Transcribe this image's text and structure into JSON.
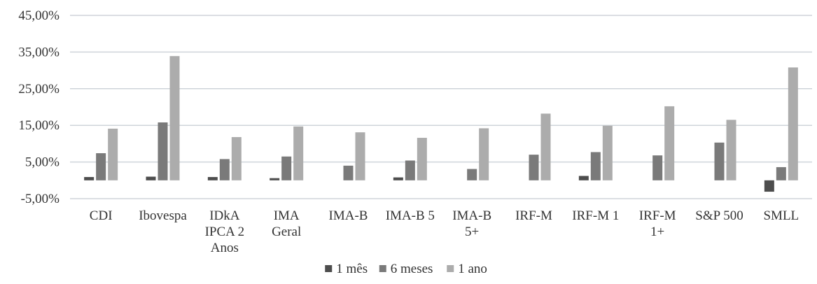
{
  "chart_data": {
    "type": "bar",
    "title": "",
    "xlabel": "",
    "ylabel": "",
    "ylim": [
      -5,
      45
    ],
    "yticks": [
      "45,00%",
      "35,00%",
      "25,00%",
      "15,00%",
      "5,00%",
      "-5,00%"
    ],
    "grid": true,
    "legend_position": "bottom",
    "categories": [
      [
        "CDI"
      ],
      [
        "Ibovespa"
      ],
      [
        "IDkA",
        "IPCA 2",
        "Anos"
      ],
      [
        "IMA",
        "Geral"
      ],
      [
        "IMA-B"
      ],
      [
        "IMA-B 5"
      ],
      [
        "IMA-B",
        "5+"
      ],
      [
        "IRF-M"
      ],
      [
        "IRF-M 1"
      ],
      [
        "IRF-M",
        "1+"
      ],
      [
        "S&P 500"
      ],
      [
        "SMLL"
      ]
    ],
    "series": [
      {
        "name": "1 mês",
        "color": "#4d4d4d",
        "values": [
          0.9,
          1.0,
          0.9,
          0.6,
          0.0,
          0.8,
          0.0,
          0.0,
          1.2,
          0.0,
          0.0,
          -3.1
        ]
      },
      {
        "name": "6 meses",
        "color": "#7a7a7a",
        "values": [
          7.4,
          15.8,
          5.8,
          6.5,
          4.0,
          5.4,
          3.1,
          7.0,
          7.7,
          6.8,
          10.3,
          3.6
        ]
      },
      {
        "name": "1 ano",
        "color": "#acacac",
        "values": [
          14.1,
          33.9,
          11.8,
          14.7,
          13.1,
          11.6,
          14.2,
          18.2,
          14.9,
          20.2,
          16.5,
          30.8
        ]
      }
    ]
  }
}
